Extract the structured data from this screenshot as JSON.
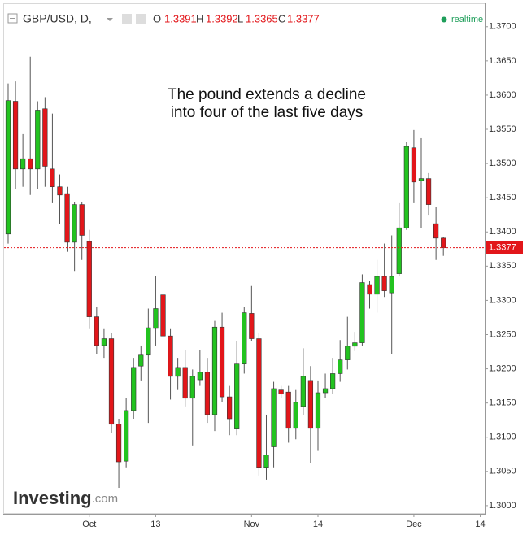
{
  "header": {
    "symbol": "GBP/USD, D,",
    "o_label": "O",
    "open": "1.3391",
    "h_label": "H",
    "high": "1.3392",
    "l_label": "L",
    "low": "1.3365",
    "c_label": "C",
    "close": "1.3377",
    "status": "realtime"
  },
  "logo": {
    "name": "Investing",
    "suffix": ".com"
  },
  "chart_data": {
    "type": "candlestick",
    "annotation": [
      "The pound extends a decline",
      "into four of the last five days"
    ],
    "up_color": "#22c31f",
    "down_color": "#e2161a",
    "x": [
      0,
      1,
      2,
      3,
      4,
      5,
      6,
      7,
      8,
      9,
      10,
      11,
      12,
      13,
      14,
      15,
      16,
      17,
      18,
      19,
      20,
      21,
      22,
      23,
      24,
      25,
      26,
      27,
      28,
      29,
      30,
      31,
      32,
      33,
      34,
      35,
      36,
      37,
      38,
      39,
      40,
      41,
      42,
      43,
      44,
      45,
      46,
      47,
      48,
      49,
      50,
      51,
      52,
      53,
      54,
      55,
      56,
      57,
      58,
      59
    ],
    "open": [
      1.3397,
      1.3591,
      1.3492,
      1.3507,
      1.3492,
      1.358,
      1.3492,
      1.3466,
      1.3456,
      1.3385,
      1.344,
      1.3386,
      1.3276,
      1.3234,
      1.3244,
      1.3119,
      1.3065,
      1.3139,
      1.3204,
      1.322,
      1.3259,
      1.3308,
      1.3248,
      1.3189,
      1.3202,
      1.3157,
      1.3184,
      1.3195,
      1.3133,
      1.3261,
      1.3159,
      1.3112,
      1.3207,
      1.3281,
      1.3244,
      1.3056,
      1.3086,
      1.3169,
      1.3166,
      1.3113,
      1.3145,
      1.3183,
      1.3113,
      1.3165,
      1.3171,
      1.3193,
      1.3213,
      1.3233,
      1.3238,
      1.3323,
      1.3309,
      1.3335,
      1.3311,
      1.3339,
      1.3406,
      1.3523,
      1.3475,
      1.3478,
      1.3412,
      1.3391
    ],
    "high": [
      1.3617,
      1.362,
      1.3543,
      1.3656,
      1.3591,
      1.3597,
      1.3573,
      1.3484,
      1.3466,
      1.3444,
      1.3444,
      1.3403,
      1.329,
      1.3258,
      1.3252,
      1.3127,
      1.3157,
      1.3216,
      1.3234,
      1.3288,
      1.3335,
      1.3317,
      1.3258,
      1.3216,
      1.3228,
      1.3199,
      1.3228,
      1.3216,
      1.327,
      1.3282,
      1.3175,
      1.324,
      1.329,
      1.3321,
      1.3252,
      1.3133,
      1.3181,
      1.3175,
      1.3175,
      1.3169,
      1.323,
      1.3204,
      1.3183,
      1.3193,
      1.3216,
      1.3242,
      1.3276,
      1.3254,
      1.3338,
      1.3329,
      1.3359,
      1.3383,
      1.3395,
      1.3442,
      1.3531,
      1.3549,
      1.3537,
      1.3486,
      1.3436,
      1.3392
    ],
    "low": [
      1.3383,
      1.3463,
      1.3466,
      1.3454,
      1.3463,
      1.3466,
      1.3442,
      1.3412,
      1.3371,
      1.3343,
      1.3359,
      1.3258,
      1.3222,
      1.3216,
      1.3106,
      1.3026,
      1.3056,
      1.3127,
      1.3183,
      1.3121,
      1.3234,
      1.324,
      1.3155,
      1.3169,
      1.3145,
      1.3088,
      1.3175,
      1.3121,
      1.3109,
      1.3151,
      1.3103,
      1.3103,
      1.3193,
      1.324,
      1.3044,
      1.3038,
      1.3056,
      1.3157,
      1.3092,
      1.3097,
      1.3133,
      1.3062,
      1.308,
      1.3157,
      1.3163,
      1.3181,
      1.3199,
      1.3226,
      1.3234,
      1.3288,
      1.3282,
      1.3305,
      1.3222,
      1.3335,
      1.3403,
      1.3442,
      1.3406,
      1.3424,
      1.3359,
      1.3365
    ],
    "close": [
      1.3592,
      1.3492,
      1.3507,
      1.3492,
      1.3578,
      1.3496,
      1.3466,
      1.3454,
      1.3385,
      1.344,
      1.3395,
      1.3276,
      1.3234,
      1.3244,
      1.3119,
      1.3064,
      1.3139,
      1.3202,
      1.322,
      1.326,
      1.3288,
      1.3248,
      1.3189,
      1.3202,
      1.3157,
      1.3189,
      1.3195,
      1.3133,
      1.3261,
      1.3159,
      1.3127,
      1.3207,
      1.3282,
      1.3244,
      1.3056,
      1.3074,
      1.3171,
      1.3163,
      1.3113,
      1.3151,
      1.3189,
      1.3113,
      1.3165,
      1.3171,
      1.3193,
      1.3213,
      1.3233,
      1.3238,
      1.3326,
      1.3309,
      1.3335,
      1.3314,
      1.3335,
      1.3406,
      1.3525,
      1.3473,
      1.3478,
      1.344,
      1.3391,
      1.3377
    ],
    "last_price": {
      "value": 1.3377,
      "label": "1.3377"
    },
    "xlim": [
      -0.55,
      64.6
    ],
    "xticks": [
      {
        "value": 11,
        "label": "Oct"
      },
      {
        "value": 20,
        "label": "13"
      },
      {
        "value": 33,
        "label": "Nov"
      },
      {
        "value": 42,
        "label": "14"
      },
      {
        "value": 55,
        "label": "Dec"
      },
      {
        "value": 64,
        "label": "14"
      }
    ],
    "ylim": [
      1.2988,
      1.3733
    ],
    "yticks": [
      {
        "value": 1.3,
        "label": "1.3000"
      },
      {
        "value": 1.305,
        "label": "1.3050"
      },
      {
        "value": 1.31,
        "label": "1.3100"
      },
      {
        "value": 1.315,
        "label": "1.3150"
      },
      {
        "value": 1.32,
        "label": "1.3200"
      },
      {
        "value": 1.325,
        "label": "1.3250"
      },
      {
        "value": 1.33,
        "label": "1.3300"
      },
      {
        "value": 1.335,
        "label": "1.3350"
      },
      {
        "value": 1.34,
        "label": "1.3400"
      },
      {
        "value": 1.345,
        "label": "1.3450"
      },
      {
        "value": 1.35,
        "label": "1.3500"
      },
      {
        "value": 1.355,
        "label": "1.3550"
      },
      {
        "value": 1.36,
        "label": "1.3600"
      },
      {
        "value": 1.365,
        "label": "1.3650"
      },
      {
        "value": 1.37,
        "label": "1.3700"
      }
    ]
  }
}
